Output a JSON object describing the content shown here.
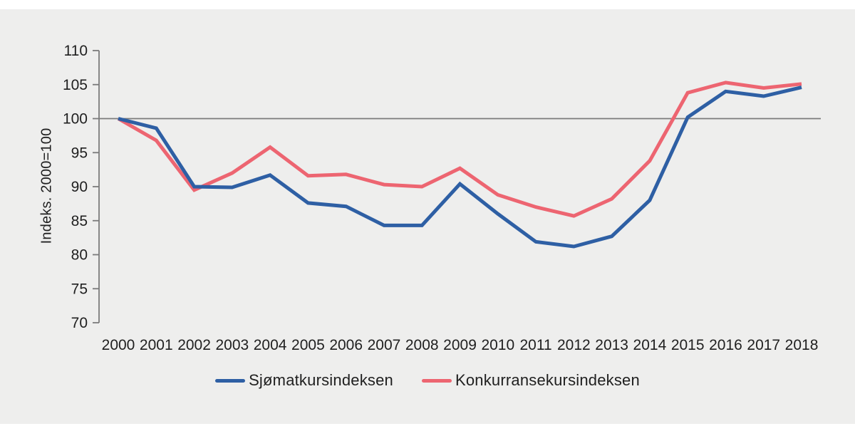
{
  "figure": {
    "background": "#ffffff",
    "panel_color": "#eeeeed",
    "axis_color": "#7b7b7b",
    "text_color": "#1f1f1f"
  },
  "chart_data": {
    "type": "line",
    "title": "",
    "ylabel": "Indeks. 2000=100",
    "xlabel": "",
    "x": [
      2000,
      2001,
      2002,
      2003,
      2004,
      2005,
      2006,
      2007,
      2008,
      2009,
      2010,
      2011,
      2012,
      2013,
      2014,
      2015,
      2016,
      2017,
      2018
    ],
    "series": [
      {
        "name": "Sjømatkursindeksen",
        "color": "#2e5fa4",
        "values": [
          100,
          98.6,
          90.0,
          89.9,
          91.7,
          87.6,
          87.1,
          84.3,
          84.3,
          90.4,
          86.0,
          81.9,
          81.2,
          82.7,
          88.0,
          100.2,
          104.0,
          103.3,
          104.6
        ]
      },
      {
        "name": "Konkurransekursindeksen",
        "color": "#ed6571",
        "values": [
          100,
          96.8,
          89.5,
          92.0,
          95.8,
          91.6,
          91.8,
          90.3,
          90.0,
          92.7,
          88.8,
          87.0,
          85.7,
          88.2,
          93.8,
          103.8,
          105.3,
          104.5,
          105.1
        ]
      }
    ],
    "ylim": [
      70,
      110
    ],
    "yticks": [
      110,
      105,
      100,
      95,
      90,
      85,
      80,
      75,
      70
    ],
    "reference_line_at": 100,
    "grid": "single horizontal reference line at 100",
    "legend_position": "bottom-center",
    "line_width": 5
  }
}
